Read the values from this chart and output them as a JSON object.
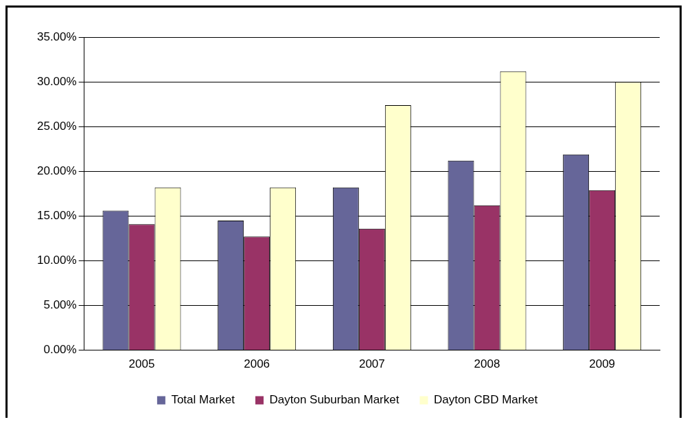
{
  "chart_data": {
    "type": "bar",
    "categories": [
      "2005",
      "2006",
      "2007",
      "2008",
      "2009"
    ],
    "series": [
      {
        "name": "Total Market",
        "color": "#666699",
        "values": [
          15.6,
          14.5,
          18.2,
          21.2,
          21.9
        ]
      },
      {
        "name": "Dayton Suburban Market",
        "color": "#993366",
        "values": [
          14.1,
          12.7,
          13.6,
          16.2,
          17.9
        ]
      },
      {
        "name": "Dayton CBD Market",
        "color": "#ffffcc",
        "values": [
          18.2,
          18.2,
          27.4,
          31.2,
          30.0
        ]
      }
    ],
    "ylim": [
      0,
      35
    ],
    "yticks": [
      {
        "value": 0,
        "label": "0.00%"
      },
      {
        "value": 5,
        "label": "5.00%"
      },
      {
        "value": 10,
        "label": "10.00%"
      },
      {
        "value": 15,
        "label": "15.00%"
      },
      {
        "value": 20,
        "label": "20.00%"
      },
      {
        "value": 25,
        "label": "25.00%"
      },
      {
        "value": 30,
        "label": "30.00%"
      },
      {
        "value": 35,
        "label": "35.00%"
      }
    ],
    "grid": "y",
    "legend": "bottom"
  }
}
